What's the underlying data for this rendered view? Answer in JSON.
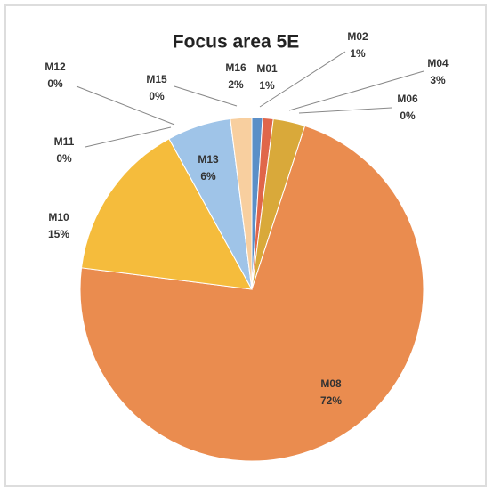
{
  "chart_data": {
    "type": "pie",
    "title": "Focus area 5E",
    "categories": [
      "M01",
      "M02",
      "M04",
      "M06",
      "M08",
      "M10",
      "M11",
      "M12",
      "M13",
      "M15",
      "M16"
    ],
    "values": [
      1,
      1,
      3,
      0,
      72,
      15,
      0,
      0,
      6,
      0,
      2
    ],
    "value_labels": [
      "1%",
      "1%",
      "3%",
      "0%",
      "72%",
      "15%",
      "0%",
      "0%",
      "6%",
      "0%",
      "2%"
    ],
    "colors": [
      "#5b8fc7",
      "#e0664a",
      "#d9a93a",
      "#a5a5a5",
      "#ea8c4f",
      "#f5bc3c",
      "#7f9f5a",
      "#6e86b8",
      "#9fc4e8",
      "#c8c8c8",
      "#f8cf9f"
    ]
  }
}
